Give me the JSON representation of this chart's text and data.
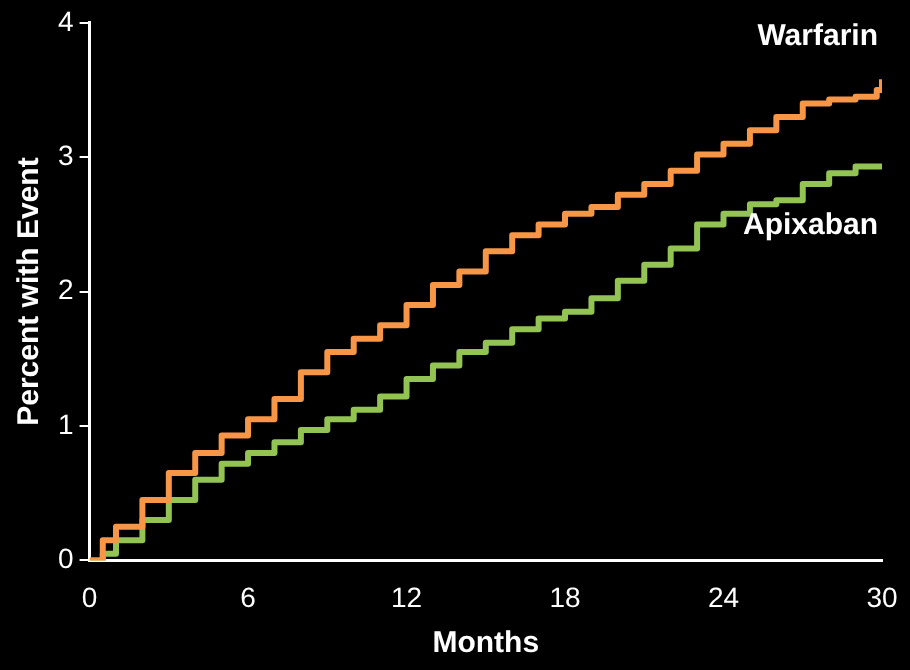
{
  "chart_data": {
    "type": "step",
    "xlabel": "Months",
    "ylabel": "Percent with Event",
    "xlim": [
      0,
      30
    ],
    "xticks": [
      0,
      6,
      12,
      18,
      24,
      30
    ],
    "ylim": [
      0,
      4
    ],
    "yticks": [
      0,
      1,
      2,
      3,
      4
    ],
    "grid": false,
    "legend": false,
    "marker": "none",
    "x": [
      0,
      0.5,
      1,
      2,
      3,
      4,
      5,
      6,
      7,
      8,
      9,
      10,
      11,
      12,
      13,
      14,
      15,
      16,
      17,
      18,
      19,
      20,
      21,
      22,
      23,
      24,
      25,
      26,
      27,
      28,
      29,
      29.8,
      30
    ],
    "series": [
      {
        "name": "Warfarin",
        "color": "#f79646",
        "values": [
          0,
          0.15,
          0.25,
          0.45,
          0.65,
          0.8,
          0.93,
          1.05,
          1.2,
          1.4,
          1.55,
          1.65,
          1.75,
          1.9,
          2.05,
          2.15,
          2.3,
          2.42,
          2.5,
          2.58,
          2.63,
          2.72,
          2.8,
          2.9,
          3.02,
          3.1,
          3.2,
          3.3,
          3.4,
          3.43,
          3.45,
          3.5,
          3.58
        ]
      },
      {
        "name": "Apixaban",
        "color": "#92c353",
        "values": [
          0,
          0.05,
          0.15,
          0.3,
          0.45,
          0.6,
          0.72,
          0.8,
          0.88,
          0.97,
          1.05,
          1.12,
          1.22,
          1.35,
          1.45,
          1.55,
          1.62,
          1.72,
          1.8,
          1.85,
          1.95,
          2.08,
          2.2,
          2.32,
          2.5,
          2.58,
          2.65,
          2.68,
          2.8,
          2.88,
          2.93,
          2.93,
          2.93
        ]
      }
    ]
  }
}
